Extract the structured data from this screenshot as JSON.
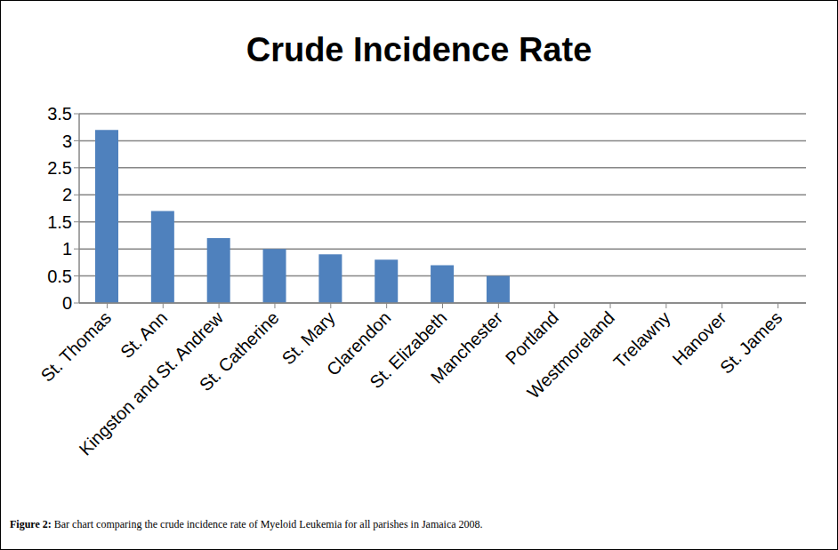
{
  "chart_data": {
    "type": "bar",
    "title": "Crude Incidence Rate",
    "caption": "Figure 2: Bar chart comparing the crude incidence rate of Myeloid Leukemia for all parishes in Jamaica 2008.",
    "categories": [
      "St. Thomas",
      "St. Ann",
      "Kingston and St. Andrew",
      "St. Catherine",
      "St. Mary",
      "Clarendon",
      "St. Elizabeth",
      "Manchester",
      "Portland",
      "Westmoreland",
      "Trelawny",
      "Hanover",
      "St. James"
    ],
    "values": [
      3.2,
      1.7,
      1.2,
      1.0,
      0.9,
      0.8,
      0.7,
      0.5,
      0,
      0,
      0,
      0,
      0
    ],
    "color": "#4f81bd",
    "ylim": [
      0,
      3.5
    ],
    "yticks": [
      0,
      0.5,
      1,
      1.5,
      2,
      2.5,
      3,
      3.5
    ],
    "grid": true
  }
}
